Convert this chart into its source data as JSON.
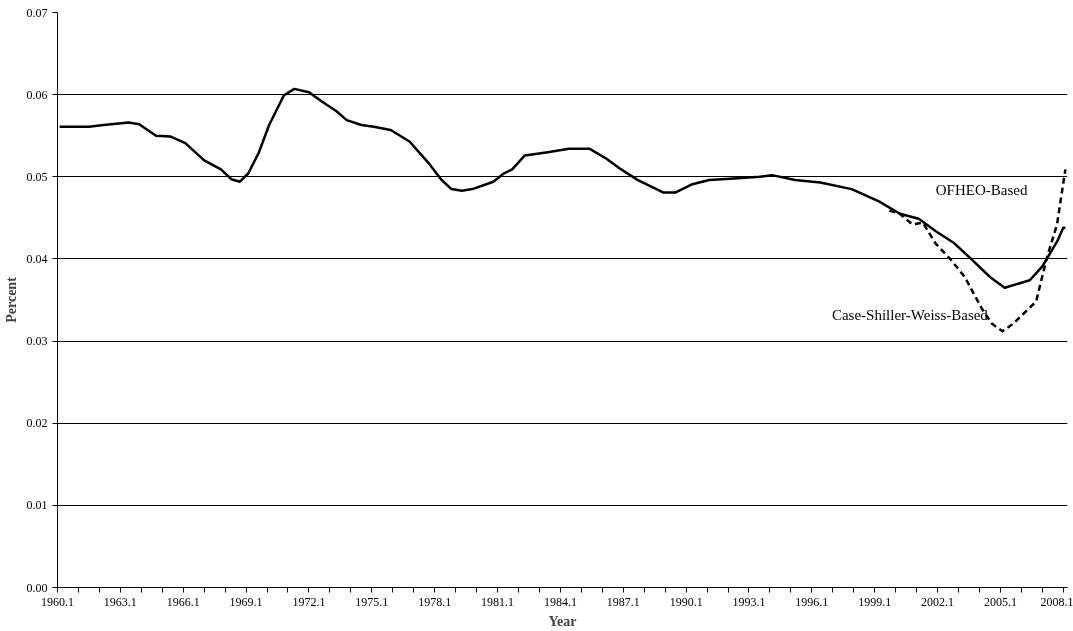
{
  "chart_data": {
    "type": "line",
    "xlabel": "Year",
    "ylabel": "Percent",
    "grid": "y",
    "legend": false,
    "xlim": [
      1960.1,
      2008.3
    ],
    "ylim": [
      0,
      0.07
    ],
    "yticks": [
      {
        "value": 0,
        "label": "0.00"
      },
      0.01,
      0.02,
      0.03,
      0.04,
      0.05,
      0.06,
      0.07
    ],
    "xticks": [
      1960.1,
      {
        "value": 1961.1,
        "label": null
      },
      {
        "value": 1962.1,
        "label": null
      },
      1963.1,
      {
        "value": 1964.1,
        "label": null
      },
      {
        "value": 1965.1,
        "label": null
      },
      1966.1,
      {
        "value": 1967.1,
        "label": null
      },
      {
        "value": 1968.1,
        "label": null
      },
      1969.1,
      {
        "value": 1970.1,
        "label": null
      },
      {
        "value": 1971.1,
        "label": null
      },
      1972.1,
      {
        "value": 1973.1,
        "label": null
      },
      {
        "value": 1974.1,
        "label": null
      },
      1975.1,
      {
        "value": 1976.1,
        "label": null
      },
      {
        "value": 1977.1,
        "label": null
      },
      1978.1,
      {
        "value": 1979.1,
        "label": null
      },
      {
        "value": 1980.1,
        "label": null
      },
      1981.1,
      {
        "value": 1982.1,
        "label": null
      },
      {
        "value": 1983.1,
        "label": null
      },
      1984.1,
      {
        "value": 1985.1,
        "label": null
      },
      {
        "value": 1986.1,
        "label": null
      },
      1987.1,
      {
        "value": 1988.1,
        "label": null
      },
      {
        "value": 1989.1,
        "label": null
      },
      1990.1,
      {
        "value": 1991.1,
        "label": null
      },
      {
        "value": 1992.1,
        "label": null
      },
      1993.1,
      {
        "value": 1994.1,
        "label": null
      },
      {
        "value": 1995.1,
        "label": null
      },
      1996.1,
      {
        "value": 1997.1,
        "label": null
      },
      {
        "value": 1998.1,
        "label": null
      },
      1999.1,
      {
        "value": 2000.1,
        "label": null
      },
      {
        "value": 2001.1,
        "label": null
      },
      2002.1,
      {
        "value": 2003.1,
        "label": null
      },
      {
        "value": 2004.1,
        "label": null
      },
      2005.1,
      {
        "value": 2006.1,
        "label": null
      },
      {
        "value": 2007.1,
        "label": null
      },
      2008.1
    ],
    "series": [
      {
        "name": "OFHEO-Based",
        "color": "#000000",
        "line_style": "solid",
        "x": [
          1960.2,
          1960.9,
          1961.6,
          1962.3,
          1963.5,
          1964.0,
          1964.8,
          1965.5,
          1966.2,
          1967.1,
          1967.9,
          1968.4,
          1968.8,
          1969.2,
          1969.7,
          1970.2,
          1970.9,
          1971.4,
          1972.1,
          1972.7,
          1973.4,
          1973.9,
          1974.6,
          1975.2,
          1976.0,
          1976.9,
          1977.8,
          1978.4,
          1978.9,
          1979.4,
          1979.9,
          1980.9,
          1981.4,
          1981.8,
          1982.4,
          1983.5,
          1984.5,
          1985.5,
          1986.3,
          1987.0,
          1987.8,
          1989.0,
          1989.6,
          1990.4,
          1991.2,
          1992.4,
          1993.6,
          1994.2,
          1995.3,
          1996.5,
          1998.0,
          1999.3,
          2000.3,
          2001.2,
          2002.0,
          2002.9,
          2003.7,
          2004.6,
          2005.3,
          2006.5,
          2007.1,
          2007.8,
          2008.1,
          2008.2
        ],
        "values": [
          0.0561,
          0.0561,
          0.0561,
          0.0563,
          0.0566,
          0.0564,
          0.055,
          0.0549,
          0.0541,
          0.052,
          0.0509,
          0.0497,
          0.0494,
          0.0504,
          0.0529,
          0.0563,
          0.0599,
          0.0607,
          0.0603,
          0.0592,
          0.058,
          0.0569,
          0.0563,
          0.0561,
          0.0557,
          0.0543,
          0.0517,
          0.0497,
          0.0485,
          0.0483,
          0.0485,
          0.0494,
          0.0504,
          0.0509,
          0.0526,
          0.053,
          0.0534,
          0.0534,
          0.0522,
          0.0509,
          0.0496,
          0.0481,
          0.0481,
          0.0491,
          0.0496,
          0.0498,
          0.05,
          0.0502,
          0.0496,
          0.0493,
          0.0485,
          0.047,
          0.0455,
          0.0449,
          0.0434,
          0.0419,
          0.04,
          0.0378,
          0.0365,
          0.0374,
          0.0391,
          0.0421,
          0.0438,
          0.0438
        ]
      },
      {
        "name": "Case-Shiller-Weiss-Based",
        "color": "#000000",
        "line_style": "dashed",
        "x": [
          1999.8,
          2000.3,
          2000.9,
          2001.4,
          2002.0,
          2002.7,
          2003.4,
          2004.2,
          2004.7,
          2005.2,
          2005.7,
          2006.8,
          2007.3,
          2007.8,
          2008.2
        ],
        "values": [
          0.0459,
          0.0455,
          0.0442,
          0.0444,
          0.0419,
          0.04,
          0.0378,
          0.034,
          0.0321,
          0.0312,
          0.0321,
          0.0348,
          0.04,
          0.0442,
          0.0509
        ]
      }
    ]
  }
}
